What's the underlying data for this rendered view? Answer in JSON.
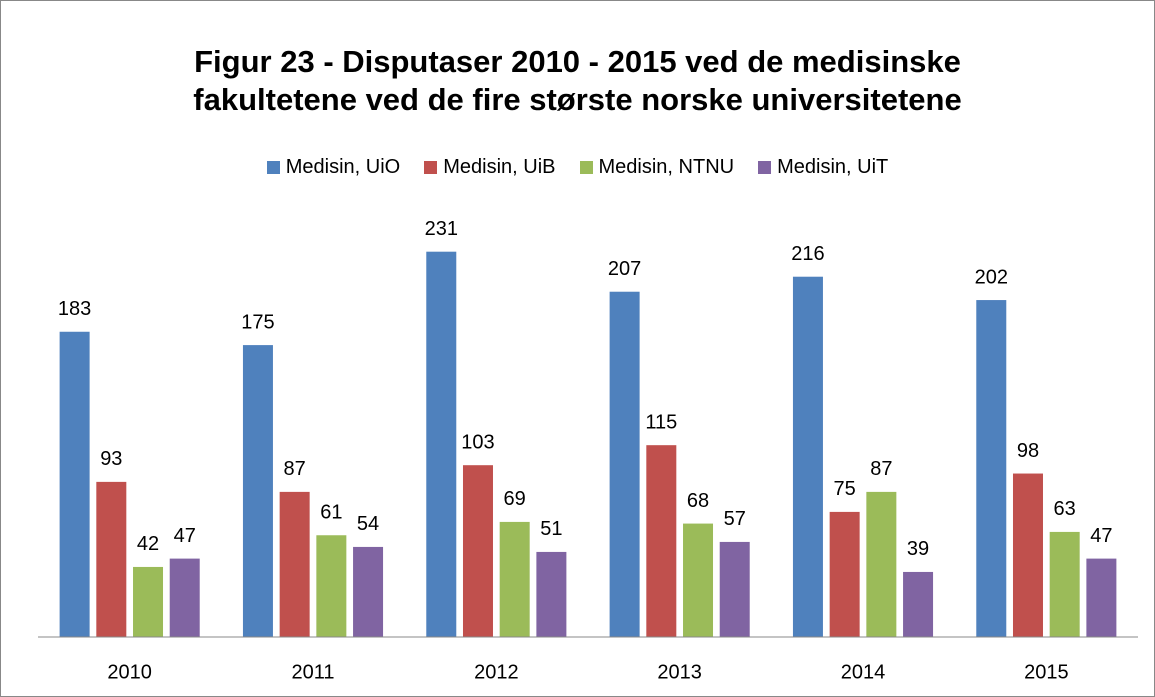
{
  "chart_data": {
    "type": "bar",
    "title": "Figur 23 - Disputaser 2010 - 2015 ved de medisinske fakultetene ved de fire største norske universitetene",
    "categories": [
      "2010",
      "2011",
      "2012",
      "2013",
      "2014",
      "2015"
    ],
    "series": [
      {
        "name": "Medisin, UiO",
        "color": "#4f81bd",
        "values": [
          183,
          175,
          231,
          207,
          216,
          202
        ]
      },
      {
        "name": "Medisin, UiB",
        "color": "#c0504d",
        "values": [
          93,
          87,
          103,
          115,
          75,
          98
        ]
      },
      {
        "name": "Medisin, NTNU",
        "color": "#9bbb59",
        "values": [
          42,
          61,
          69,
          68,
          87,
          63
        ]
      },
      {
        "name": "Medisin, UiT",
        "color": "#8064a2",
        "values": [
          47,
          54,
          51,
          57,
          39,
          47
        ]
      }
    ],
    "ylim": [
      0,
      250
    ],
    "legend": "top",
    "data_labels": true
  }
}
